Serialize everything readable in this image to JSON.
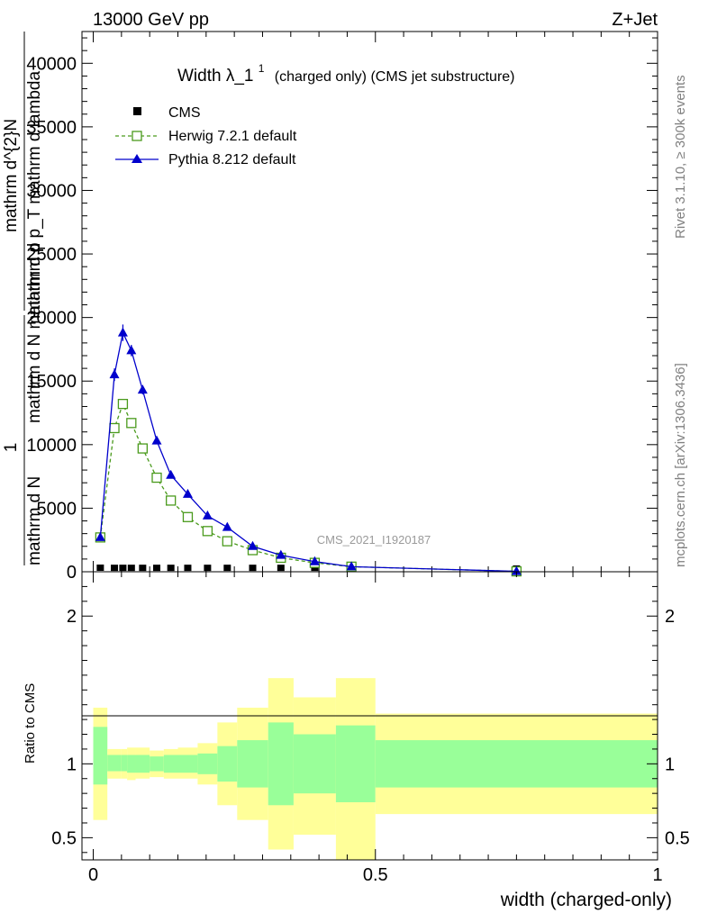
{
  "header": {
    "energy": "13000 GeV pp",
    "process": "Z+Jet"
  },
  "side_labels": {
    "rivet": "Rivet 3.1.10, ≥ 300k events",
    "mcplots": "mcplots.cern.ch [arXiv:1306.3436]"
  },
  "chart_data": [
    {
      "type": "line",
      "title_main": "Width λ_1",
      "title_sup": "1",
      "title_rest": "(charged only) (CMS jet substructure)",
      "ylabel_numerator": "1",
      "ylabel_denominator": "mathrm d N",
      "ylabel_left": "mathrm d N mathrm d p",
      "ylabel_right_top": "mathrm d^{2}N",
      "ylabel_right_bottom": "mathrm d p_T mathrm d lambda",
      "watermark": "CMS_2021_I1920187",
      "ylim": [
        0,
        42500
      ],
      "xlim": [
        -0.02,
        1.0
      ],
      "y_ticks": [
        0,
        5000,
        10000,
        15000,
        20000,
        25000,
        30000,
        35000,
        40000
      ],
      "y_tick_labels": [
        "0",
        "5000",
        "10000",
        "15000",
        "20000",
        "25000",
        "30000",
        "35000",
        "40000"
      ],
      "legend_position": "top-left",
      "series": [
        {
          "name": "CMS",
          "color": "#000000",
          "marker": "square-filled",
          "x": [
            0.0125,
            0.0375,
            0.0525,
            0.0675,
            0.0875,
            0.1125,
            0.1375,
            0.1675,
            0.2025,
            0.2375,
            0.2825,
            0.3325,
            0.3925,
            0.4575,
            0.75
          ],
          "y": [
            70,
            60,
            60,
            60,
            60,
            60,
            60,
            60,
            60,
            60,
            60,
            60,
            60,
            60,
            5
          ]
        },
        {
          "name": "Herwig 7.2.1 default",
          "color": "#4a9a1c",
          "marker": "square-open",
          "dashed": true,
          "x": [
            0.0125,
            0.0375,
            0.0525,
            0.0675,
            0.0875,
            0.1125,
            0.1375,
            0.1675,
            0.2025,
            0.2375,
            0.2825,
            0.3325,
            0.3925,
            0.4575,
            0.75
          ],
          "y": [
            2700,
            11300,
            13200,
            11700,
            9700,
            7400,
            5600,
            4300,
            3200,
            2400,
            1700,
            1100,
            700,
            400,
            30
          ]
        },
        {
          "name": "Pythia 8.212 default",
          "color": "#0000cc",
          "marker": "triangle-filled",
          "dashed": false,
          "x": [
            0.0125,
            0.0375,
            0.0525,
            0.0675,
            0.0875,
            0.1125,
            0.1375,
            0.1675,
            0.2025,
            0.2375,
            0.2825,
            0.3325,
            0.3925,
            0.4575,
            0.75
          ],
          "y": [
            2700,
            15500,
            18800,
            17400,
            14300,
            10300,
            7600,
            6100,
            4400,
            3500,
            2000,
            1300,
            800,
            400,
            30
          ],
          "err": [
            0,
            500,
            650,
            450,
            350,
            250,
            200,
            150,
            120,
            100,
            80,
            60,
            50,
            40,
            10
          ]
        }
      ]
    },
    {
      "type": "area",
      "ylabel": "Ratio to CMS",
      "xlabel": "width (charged-only)",
      "ylim": [
        0.35,
        2.3
      ],
      "y_ticks": [
        0.5,
        1,
        2
      ],
      "y_tick_labels": [
        "0.5",
        "1",
        "2"
      ],
      "xlim": [
        -0.02,
        1.0
      ],
      "x_ticks": [
        0,
        0.5,
        1
      ],
      "x_tick_labels": [
        "0",
        "0.5",
        "1"
      ],
      "bins": [
        {
          "lo": 0.0,
          "hi": 0.025,
          "in_lo": 0.86,
          "in_hi": 1.25,
          "out_lo": 0.62,
          "out_hi": 1.38
        },
        {
          "lo": 0.025,
          "hi": 0.05,
          "in_lo": 0.95,
          "in_hi": 1.06,
          "out_lo": 0.9,
          "out_hi": 1.1
        },
        {
          "lo": 0.05,
          "hi": 0.06,
          "in_lo": 0.95,
          "in_hi": 1.06,
          "out_lo": 0.9,
          "out_hi": 1.1
        },
        {
          "lo": 0.06,
          "hi": 0.075,
          "in_lo": 0.94,
          "in_hi": 1.06,
          "out_lo": 0.89,
          "out_hi": 1.11
        },
        {
          "lo": 0.075,
          "hi": 0.1,
          "in_lo": 0.94,
          "in_hi": 1.06,
          "out_lo": 0.9,
          "out_hi": 1.11
        },
        {
          "lo": 0.1,
          "hi": 0.125,
          "in_lo": 0.95,
          "in_hi": 1.05,
          "out_lo": 0.91,
          "out_hi": 1.09
        },
        {
          "lo": 0.125,
          "hi": 0.15,
          "in_lo": 0.94,
          "in_hi": 1.06,
          "out_lo": 0.9,
          "out_hi": 1.1
        },
        {
          "lo": 0.15,
          "hi": 0.185,
          "in_lo": 0.94,
          "in_hi": 1.06,
          "out_lo": 0.9,
          "out_hi": 1.11
        },
        {
          "lo": 0.185,
          "hi": 0.22,
          "in_lo": 0.93,
          "in_hi": 1.07,
          "out_lo": 0.86,
          "out_hi": 1.14
        },
        {
          "lo": 0.22,
          "hi": 0.255,
          "in_lo": 0.88,
          "in_hi": 1.12,
          "out_lo": 0.72,
          "out_hi": 1.28
        },
        {
          "lo": 0.255,
          "hi": 0.31,
          "in_lo": 0.84,
          "in_hi": 1.16,
          "out_lo": 0.62,
          "out_hi": 1.38
        },
        {
          "lo": 0.31,
          "hi": 0.355,
          "in_lo": 0.72,
          "in_hi": 1.28,
          "out_lo": 0.42,
          "out_hi": 1.58
        },
        {
          "lo": 0.355,
          "hi": 0.43,
          "in_lo": 0.8,
          "in_hi": 1.2,
          "out_lo": 0.52,
          "out_hi": 1.45
        },
        {
          "lo": 0.43,
          "hi": 0.5,
          "in_lo": 0.74,
          "in_hi": 1.26,
          "out_lo": 0.35,
          "out_hi": 1.58
        },
        {
          "lo": 0.5,
          "hi": 1.0,
          "in_lo": 0.84,
          "in_hi": 1.16,
          "out_lo": 0.66,
          "out_hi": 1.34
        }
      ],
      "band_colors": {
        "inner": "#99ff99",
        "outer": "#ffff99"
      }
    }
  ]
}
